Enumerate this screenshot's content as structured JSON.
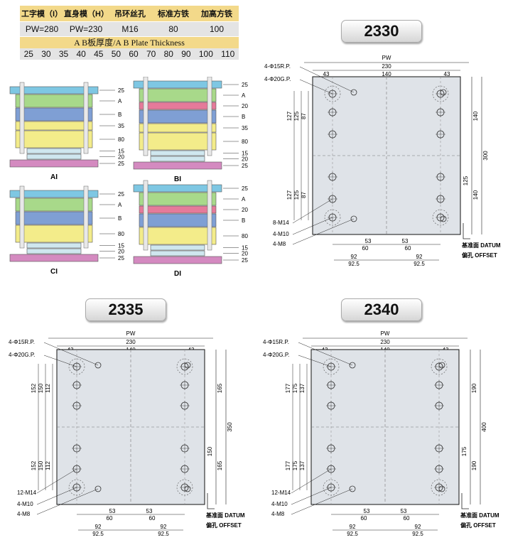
{
  "spec": {
    "headers": [
      "工字模（I）",
      "直身模（H）",
      "吊环丝孔",
      "标准方铁",
      "加高方铁"
    ],
    "values": [
      "PW=280",
      "PW=230",
      "M16",
      "80",
      "100"
    ]
  },
  "thickness": {
    "title": "A B板厚度/A B Plate Thickness",
    "values": [
      "25",
      "30",
      "35",
      "40",
      "45",
      "50",
      "60",
      "70",
      "80",
      "90",
      "100",
      "110"
    ]
  },
  "structures": [
    {
      "id": "AI",
      "labels": [
        "25",
        "A",
        "B",
        "35",
        "80",
        "15",
        "20",
        "25"
      ]
    },
    {
      "id": "BI",
      "labels": [
        "25",
        "A",
        "20",
        "B",
        "35",
        "80",
        "15",
        "20",
        "25"
      ]
    },
    {
      "id": "CI",
      "labels": [
        "25",
        "A",
        "B",
        "80",
        "15",
        "20",
        "25"
      ]
    },
    {
      "id": "DI",
      "labels": [
        "25",
        "A",
        "20",
        "B",
        "80",
        "15",
        "20",
        "25"
      ]
    }
  ],
  "models": [
    {
      "name": "2330",
      "pw": "PW",
      "width": "230",
      "span": "140",
      "edge": "43",
      "height": "300",
      "half": "140",
      "half2": "125",
      "left_a": "127",
      "left_b": "125",
      "left_c": "87",
      "rp": "4-Φ15R.P.",
      "gp": "4-Φ20G.P.",
      "m14": "8-M14",
      "m10": "4-M10",
      "m8": "4-M8",
      "b53": "53",
      "b60": "60",
      "b92": "92",
      "b925": "92.5",
      "datum": "基准面 DATUM",
      "offset": "偏孔 OFFSET"
    },
    {
      "name": "2335",
      "pw": "PW",
      "width": "230",
      "span": "140",
      "edge": "43",
      "height": "350",
      "half": "165",
      "half2": "150",
      "left_a": "152",
      "left_b": "150",
      "left_c": "112",
      "rp": "4-Φ15R.P.",
      "gp": "4-Φ20G.P.",
      "m14": "12-M14",
      "m10": "4-M10",
      "m8": "4-M8",
      "b53": "53",
      "b60": "60",
      "b92": "92",
      "b925": "92.5",
      "datum": "基准面 DATUM",
      "offset": "偏孔 OFFSET"
    },
    {
      "name": "2340",
      "pw": "PW",
      "width": "230",
      "span": "140",
      "edge": "43",
      "height": "400",
      "half": "190",
      "half2": "175",
      "left_a": "177",
      "left_b": "175",
      "left_c": "137",
      "rp": "4-Φ15R.P.",
      "gp": "4-Φ20G.P.",
      "m14": "12-M14",
      "m10": "4-M10",
      "m8": "4-M8",
      "b53": "53",
      "b60": "60",
      "b92": "92",
      "b925": "92.5",
      "datum": "基准面 DATUM",
      "offset": "偏孔 OFFSET"
    }
  ],
  "colors": {
    "plate_blue": "#7ec7e3",
    "plate_green": "#a8d98a",
    "plate_pink": "#e57a9a",
    "plate_mid": "#7f9fd4",
    "plate_yellow": "#f3ec8a",
    "plate_base": "#d48ac0",
    "drawing": "#dfe3e8"
  }
}
